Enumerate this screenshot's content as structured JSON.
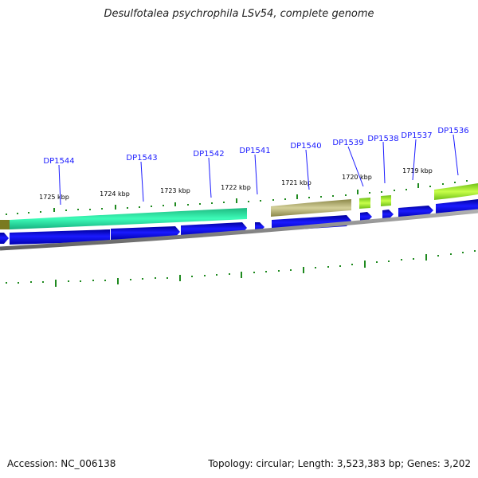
{
  "title": "Desulfotalea psychrophila LSv54, complete genome",
  "footer": {
    "accession": "Accession: NC_006138",
    "summary": "Topology: circular; Length: 3,523,383 bp; Genes: 3,202"
  },
  "colors": {
    "gene_arrow": "#0000e6",
    "gene_label": "#1a1aff",
    "tick": "#1f8a1f",
    "backbone": "#808080",
    "feature_teal": "#22e0a0",
    "feature_olive": "#a8a460",
    "feature_lime": "#99ee22"
  },
  "genes": [
    "DP1544",
    "DP1543",
    "DP1542",
    "DP1541",
    "DP1540",
    "DP1539",
    "DP1538",
    "DP1537",
    "DP1536"
  ],
  "ticks": [
    "1725 kbp",
    "1724 kbp",
    "1723 kbp",
    "1722 kbp",
    "1721 kbp",
    "1720 kbp",
    "1719 kbp"
  ]
}
